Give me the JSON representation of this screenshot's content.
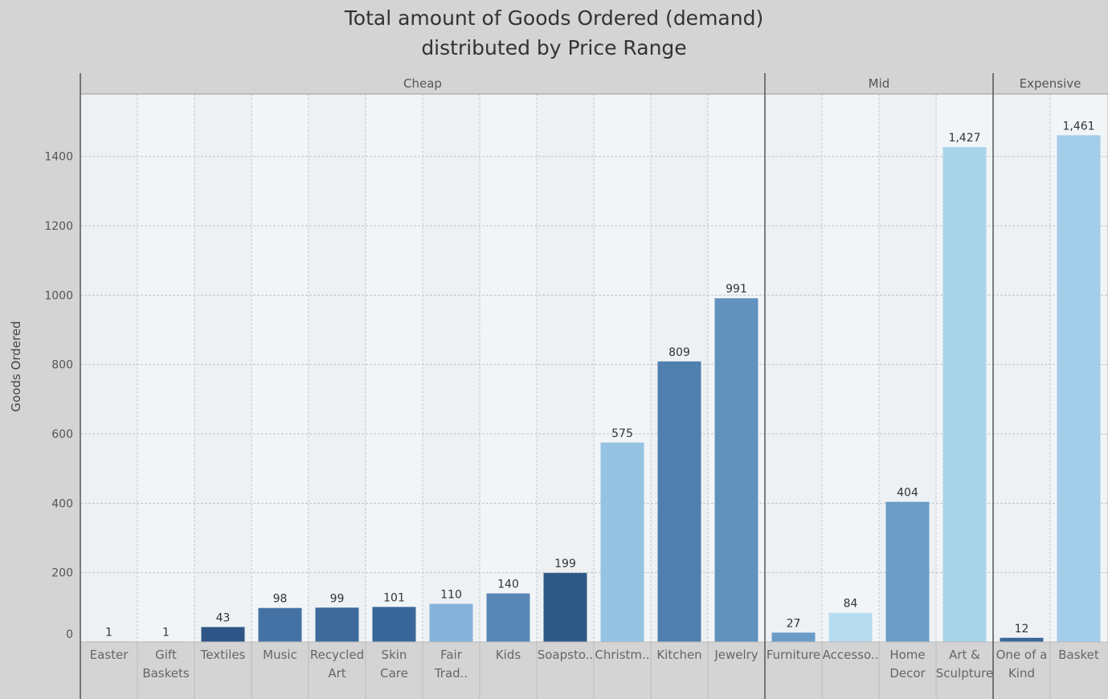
{
  "chart_data": {
    "type": "bar",
    "title_lines": [
      "Total amount of Goods Ordered (demand)",
      "distributed by Price Range"
    ],
    "ylabel": "Goods Ordered",
    "xlabel": "",
    "ylim": [
      0,
      1580
    ],
    "yticks": [
      0,
      200,
      400,
      600,
      800,
      1000,
      1200,
      1400
    ],
    "grid": true,
    "groups": [
      {
        "name": "Cheap",
        "bars": [
          {
            "label_lines": [
              "Easter"
            ],
            "value": 1,
            "value_label": "1",
            "color": "#5a88b6"
          },
          {
            "label_lines": [
              "Gift",
              "Baskets"
            ],
            "value": 1,
            "value_label": "1",
            "color": "#5a88b6"
          },
          {
            "label_lines": [
              "Textiles"
            ],
            "value": 43,
            "value_label": "43",
            "color": "#2e5585"
          },
          {
            "label_lines": [
              "Music"
            ],
            "value": 98,
            "value_label": "98",
            "color": "#4472a4"
          },
          {
            "label_lines": [
              "Recycled",
              "Art"
            ],
            "value": 99,
            "value_label": "99",
            "color": "#3d6a9b"
          },
          {
            "label_lines": [
              "Skin",
              "Care"
            ],
            "value": 101,
            "value_label": "101",
            "color": "#3a6799"
          },
          {
            "label_lines": [
              "Fair",
              "Trad.."
            ],
            "value": 110,
            "value_label": "110",
            "color": "#86b3da"
          },
          {
            "label_lines": [
              "Kids"
            ],
            "value": 140,
            "value_label": "140",
            "color": "#5a88b6"
          },
          {
            "label_lines": [
              "Soapsto.."
            ],
            "value": 199,
            "value_label": "199",
            "color": "#2f5a88"
          },
          {
            "label_lines": [
              "Christm.."
            ],
            "value": 575,
            "value_label": "575",
            "color": "#97c3e3"
          },
          {
            "label_lines": [
              "Kitchen"
            ],
            "value": 809,
            "value_label": "809",
            "color": "#4f7fae"
          },
          {
            "label_lines": [
              "Jewelry"
            ],
            "value": 991,
            "value_label": "991",
            "color": "#6092bd"
          }
        ]
      },
      {
        "name": "Mid",
        "bars": [
          {
            "label_lines": [
              "Furniture"
            ],
            "value": 27,
            "value_label": "27",
            "color": "#6a9cc7"
          },
          {
            "label_lines": [
              "Accesso.."
            ],
            "value": 84,
            "value_label": "84",
            "color": "#b8dcef"
          },
          {
            "label_lines": [
              "Home",
              "Decor"
            ],
            "value": 404,
            "value_label": "404",
            "color": "#6a9cc5"
          },
          {
            "label_lines": [
              "Art &",
              "Sculpture"
            ],
            "value": 1427,
            "value_label": "1,427",
            "color": "#aad4ea"
          }
        ]
      },
      {
        "name": "Expensive",
        "bars": [
          {
            "label_lines": [
              "One of a",
              "Kind"
            ],
            "value": 12,
            "value_label": "12",
            "color": "#3a6799"
          },
          {
            "label_lines": [
              "Basket"
            ],
            "value": 1461,
            "value_label": "1,461",
            "color": "#a2cce8"
          }
        ]
      }
    ]
  }
}
